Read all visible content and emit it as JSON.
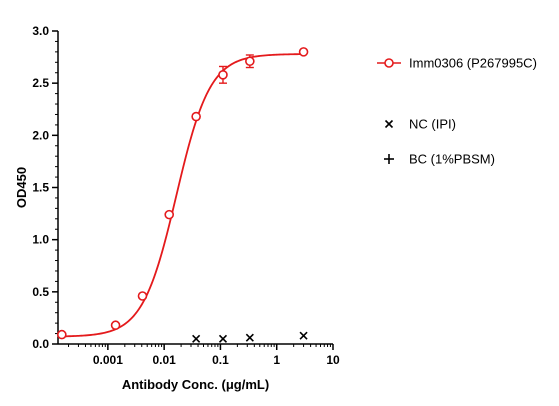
{
  "chart_data": {
    "type": "scatter",
    "xlabel": "Antibody Conc. (μg/mL)",
    "ylabel": "OD450",
    "x_scale": "log",
    "xlim": [
      0.00013,
      10
    ],
    "ylim": [
      0,
      3
    ],
    "x_ticks": [
      0.001,
      0.01,
      0.1,
      1,
      10
    ],
    "x_tick_labels": [
      "0.001",
      "0.01",
      "0.1",
      "1",
      "10"
    ],
    "y_ticks": [
      0,
      0.5,
      1,
      1.5,
      2,
      2.5,
      3
    ],
    "y_tick_labels": [
      "0.0",
      "0.5",
      "1.0",
      "1.5",
      "2.0",
      "2.5",
      "3.0"
    ],
    "grid": false,
    "legend_position": "right",
    "series": [
      {
        "name": "Imm0306 (P267995C)",
        "color": "#e41a1c",
        "marker": "open-circle",
        "fit": "four-parameter-logistic",
        "fit_params": {
          "bottom": 0.07,
          "top": 2.78,
          "ec50": 0.0165,
          "hill": 1.45
        },
        "x": [
          0.000152,
          0.00137,
          0.00412,
          0.0123,
          0.037,
          0.111,
          0.333,
          3.0
        ],
        "y": [
          0.09,
          0.18,
          0.46,
          1.24,
          2.18,
          2.58,
          2.71,
          2.8
        ],
        "yerr": [
          0.01,
          0.01,
          0.02,
          0.02,
          0.02,
          0.08,
          0.06,
          0.02
        ]
      },
      {
        "name": "NC (IPI)",
        "color": "#000000",
        "marker": "x",
        "x": [
          0.037,
          0.111,
          0.333,
          3.0
        ],
        "y": [
          0.05,
          0.05,
          0.06,
          0.08
        ]
      },
      {
        "name": "BC (1%PBSM)",
        "color": "#000000",
        "marker": "plus",
        "x": [],
        "y": []
      }
    ]
  }
}
